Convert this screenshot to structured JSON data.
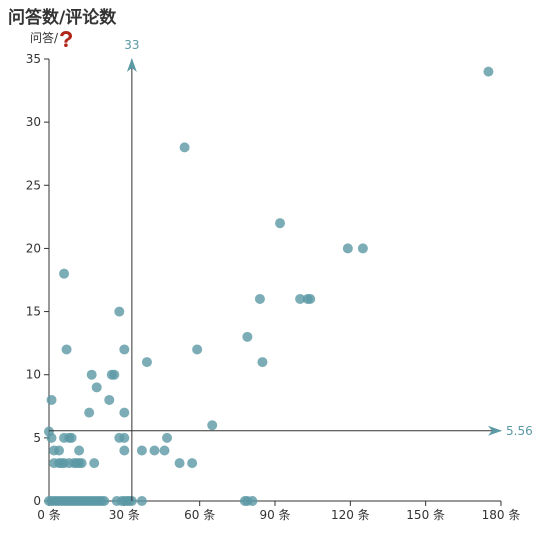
{
  "chart_data": {
    "type": "scatter",
    "title": "问答数/评论数",
    "ylabel": "问答/",
    "ylabel_icon": "question-mark-icon",
    "xlim": [
      0,
      180
    ],
    "ylim": [
      0,
      35
    ],
    "x_ticks": [
      0,
      30,
      60,
      90,
      120,
      150,
      180
    ],
    "y_ticks": [
      0,
      5,
      10,
      15,
      20,
      25,
      30,
      35
    ],
    "x_tick_suffix": " 条",
    "grid": false,
    "reference_lines": {
      "vertical": {
        "x": 33,
        "label": "33"
      },
      "horizontal": {
        "y": 5.56,
        "label": "5.56"
      }
    },
    "colors": {
      "point": "#5b99a5",
      "axis": "#333333",
      "reference": "#333333",
      "reference_arrow": "#5b99a5",
      "reference_label": "#5b99a5"
    },
    "points": [
      [
        175,
        34
      ],
      [
        54,
        28
      ],
      [
        92,
        22
      ],
      [
        119,
        20
      ],
      [
        125,
        20
      ],
      [
        6,
        18
      ],
      [
        84,
        16
      ],
      [
        100,
        16
      ],
      [
        103,
        16
      ],
      [
        104,
        16
      ],
      [
        28,
        15
      ],
      [
        79,
        13
      ],
      [
        7,
        12
      ],
      [
        30,
        12
      ],
      [
        59,
        12
      ],
      [
        39,
        11
      ],
      [
        85,
        11
      ],
      [
        17,
        10
      ],
      [
        26,
        10
      ],
      [
        25,
        10
      ],
      [
        19,
        9
      ],
      [
        1,
        8
      ],
      [
        24,
        8
      ],
      [
        16,
        7
      ],
      [
        30,
        7
      ],
      [
        65,
        6
      ],
      [
        0,
        5.5
      ],
      [
        1,
        5
      ],
      [
        6,
        5
      ],
      [
        9,
        5
      ],
      [
        8,
        5
      ],
      [
        28,
        5
      ],
      [
        30,
        5
      ],
      [
        47,
        5
      ],
      [
        2,
        4
      ],
      [
        4,
        4
      ],
      [
        12,
        4
      ],
      [
        30,
        4
      ],
      [
        37,
        4
      ],
      [
        42,
        4
      ],
      [
        46,
        4
      ],
      [
        2,
        3
      ],
      [
        4,
        3
      ],
      [
        5,
        3
      ],
      [
        6,
        3
      ],
      [
        8,
        3
      ],
      [
        10,
        3
      ],
      [
        11,
        3
      ],
      [
        12,
        3
      ],
      [
        13,
        3
      ],
      [
        18,
        3
      ],
      [
        52,
        3
      ],
      [
        57,
        3
      ],
      [
        0,
        0
      ],
      [
        1,
        0
      ],
      [
        2,
        0
      ],
      [
        3,
        0
      ],
      [
        4,
        0
      ],
      [
        5,
        0
      ],
      [
        6,
        0
      ],
      [
        7,
        0
      ],
      [
        8,
        0
      ],
      [
        9,
        0
      ],
      [
        10,
        0
      ],
      [
        11,
        0
      ],
      [
        12,
        0
      ],
      [
        13,
        0
      ],
      [
        14,
        0
      ],
      [
        15,
        0
      ],
      [
        16,
        0
      ],
      [
        17,
        0
      ],
      [
        18,
        0
      ],
      [
        19,
        0
      ],
      [
        20,
        0
      ],
      [
        21,
        0
      ],
      [
        22,
        0
      ],
      [
        27,
        0
      ],
      [
        29,
        0
      ],
      [
        30,
        0
      ],
      [
        31,
        0
      ],
      [
        32,
        0
      ],
      [
        33,
        0
      ],
      [
        37,
        0
      ],
      [
        78,
        0
      ],
      [
        79,
        0
      ],
      [
        81,
        0
      ]
    ]
  }
}
